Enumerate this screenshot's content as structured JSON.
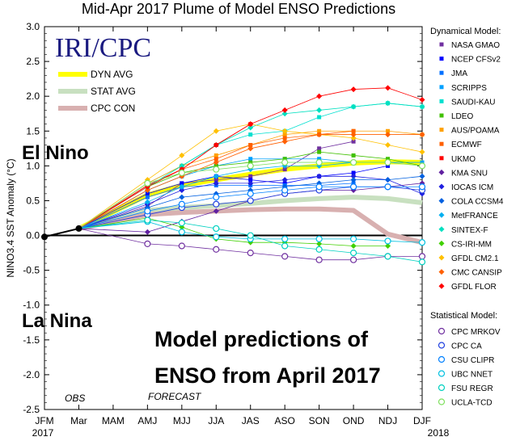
{
  "chart_data": {
    "type": "line",
    "title": "Mid-Apr 2017 Plume of Model ENSO Predictions",
    "ylabel": "NINO3.4 SST Anomaly (°C)",
    "ylim": [
      -2.5,
      3.0
    ],
    "yticks": [
      "3.0",
      "2.5",
      "2.0",
      "1.5",
      "1.0",
      "0.5",
      "0.0",
      "-0.5",
      "-1.0",
      "-1.5",
      "-2.0",
      "-2.5"
    ],
    "categories": [
      "JFM",
      "Mar",
      "MAM",
      "AMJ",
      "MJJ",
      "JJA",
      "JAS",
      "ASO",
      "SON",
      "OND",
      "NDJ",
      "DJF"
    ],
    "year_labels": [
      "2017",
      "2018"
    ],
    "obs_label": "OBS",
    "forecast_label": "FORECAST",
    "observed": [
      -0.02,
      0.1
    ],
    "logo_text": "IRI/CPC",
    "el_nino_label": "El Nino",
    "la_nina_label": "La Nina",
    "caption": [
      "Model predictions of",
      "ENSO from April 2017"
    ],
    "averages": [
      {
        "name": "DYN AVG",
        "color": "#ffff00",
        "values": [
          0.58,
          0.72,
          0.8,
          0.88,
          0.95,
          1.0,
          1.04,
          1.06,
          1.05
        ]
      },
      {
        "name": "STAT AVG",
        "color": "#c8e0c0",
        "values": [
          0.36,
          0.4,
          0.43,
          0.46,
          0.5,
          0.53,
          0.55,
          0.53,
          0.47
        ]
      },
      {
        "name": "CPC CON",
        "color": "#d8b0b0",
        "values": [
          0.3,
          0.33,
          0.35,
          0.37,
          0.38,
          0.38,
          0.36,
          0.02,
          -0.1
        ]
      }
    ],
    "dynamical_header": "Dynamical Model:",
    "dynamical": [
      {
        "name": "NASA GMAO",
        "color": "#7030a0",
        "marker": "square",
        "values": [
          0.42,
          0.75,
          0.8,
          0.85,
          0.95,
          1.25,
          1.35,
          null,
          null
        ]
      },
      {
        "name": "NCEP CFSv2",
        "color": "#0000ff",
        "marker": "square",
        "values": [
          0.6,
          0.75,
          0.85,
          0.8,
          0.75,
          0.85,
          0.9,
          1.0,
          null
        ]
      },
      {
        "name": "JMA",
        "color": "#0070ff",
        "marker": "square",
        "values": [
          0.55,
          0.7,
          0.72,
          0.72,
          0.72,
          0.72,
          0.75,
          null,
          null
        ]
      },
      {
        "name": "SCRIPPS",
        "color": "#00a0ff",
        "marker": "square",
        "values": [
          0.65,
          0.85,
          1.0,
          1.1,
          1.1,
          1.1,
          1.05,
          1.05,
          1.05
        ]
      },
      {
        "name": "SAUDI-KAU",
        "color": "#00e0d0",
        "marker": "square",
        "values": [
          0.75,
          1.0,
          1.3,
          1.45,
          1.5,
          1.7,
          1.85,
          1.9,
          1.85
        ]
      },
      {
        "name": "LDEO",
        "color": "#40c000",
        "marker": "square",
        "values": [
          0.7,
          0.9,
          1.0,
          1.05,
          1.1,
          1.2,
          1.15,
          1.1,
          1.0
        ]
      },
      {
        "name": "AUS/POAMA",
        "color": "#ffa000",
        "marker": "square",
        "values": [
          0.75,
          1.0,
          1.15,
          1.3,
          1.45,
          1.5,
          1.5,
          1.5,
          1.45
        ]
      },
      {
        "name": "ECMWF",
        "color": "#ff6000",
        "marker": "square",
        "values": [
          0.72,
          0.95,
          1.1,
          1.3,
          1.4,
          1.45,
          1.5,
          null,
          null
        ]
      },
      {
        "name": "UKMO",
        "color": "#ff0000",
        "marker": "square",
        "values": [
          0.72,
          0.95,
          1.3,
          1.6,
          null,
          null,
          null,
          null,
          null
        ]
      },
      {
        "name": "KMA SNU",
        "color": "#6020a0",
        "marker": "diamond",
        "values": [
          0.05,
          0.2,
          0.35,
          0.5,
          0.6,
          0.65,
          0.65,
          0.7,
          0.75
        ]
      },
      {
        "name": "IOCAS ICM",
        "color": "#2020e0",
        "marker": "diamond",
        "values": [
          0.45,
          0.65,
          0.75,
          0.75,
          0.8,
          0.85,
          0.85,
          0.8,
          0.6
        ]
      },
      {
        "name": "COLA CCSM4",
        "color": "#0060e0",
        "marker": "diamond",
        "values": [
          0.4,
          0.55,
          0.6,
          0.65,
          0.7,
          0.75,
          0.8,
          0.8,
          0.85
        ]
      },
      {
        "name": "MetFRANCE",
        "color": "#00b0f0",
        "marker": "diamond",
        "values": [
          0.48,
          0.7,
          0.85,
          0.95,
          1.0,
          1.0,
          1.05,
          1.05,
          null
        ]
      },
      {
        "name": "SINTEX-F",
        "color": "#00e0c0",
        "marker": "diamond",
        "values": [
          0.7,
          1.0,
          1.3,
          1.55,
          1.75,
          1.8,
          1.85,
          1.9,
          1.85
        ]
      },
      {
        "name": "CS-IRI-MM",
        "color": "#40d000",
        "marker": "diamond",
        "values": [
          0.25,
          0.12,
          -0.05,
          -0.1,
          -0.1,
          -0.12,
          -0.15,
          -0.15,
          null
        ]
      },
      {
        "name": "GFDL CM2.1",
        "color": "#ffc000",
        "marker": "diamond",
        "values": [
          0.8,
          1.15,
          1.5,
          1.6,
          1.5,
          1.45,
          1.4,
          1.3,
          1.2
        ]
      },
      {
        "name": "CMC CANSIP",
        "color": "#ff6000",
        "marker": "diamond",
        "values": [
          0.65,
          0.85,
          1.05,
          1.25,
          1.35,
          1.45,
          1.45,
          1.45,
          1.45
        ]
      },
      {
        "name": "GFDL FLOR",
        "color": "#ff0000",
        "marker": "diamond",
        "values": [
          0.7,
          0.95,
          1.3,
          1.6,
          1.8,
          2.0,
          2.1,
          2.12,
          1.95
        ]
      }
    ],
    "statistical_header": "Statistical Model:",
    "statistical": [
      {
        "name": "CPC MRKOV",
        "color": "#7030a0",
        "marker": "circle",
        "values": [
          -0.12,
          -0.15,
          -0.2,
          -0.25,
          -0.3,
          -0.35,
          -0.35,
          -0.3,
          -0.3
        ]
      },
      {
        "name": "CPC CA",
        "color": "#2040e0",
        "marker": "circle",
        "values": [
          0.3,
          0.4,
          0.45,
          0.5,
          0.6,
          0.65,
          0.7,
          0.7,
          0.65
        ]
      },
      {
        "name": "CSU CLIPR",
        "color": "#0080ff",
        "marker": "circle",
        "values": [
          0.35,
          0.45,
          0.55,
          0.6,
          0.65,
          0.7,
          0.7,
          0.7,
          0.7
        ]
      },
      {
        "name": "UBC NNET",
        "color": "#00c0e0",
        "marker": "circle",
        "values": [
          0.2,
          0.05,
          -0.02,
          -0.05,
          -0.05,
          -0.05,
          -0.05,
          -0.08,
          -0.1
        ]
      },
      {
        "name": "FSU REGR",
        "color": "#00d0c0",
        "marker": "circle",
        "values": [
          0.22,
          0.18,
          0.1,
          0.0,
          -0.15,
          -0.2,
          -0.25,
          -0.3,
          -0.38
        ]
      },
      {
        "name": "UCLA-TCD",
        "color": "#80e060",
        "marker": "circle",
        "values": [
          0.75,
          0.9,
          0.95,
          1.0,
          1.05,
          1.05,
          1.05,
          1.05,
          1.0
        ]
      }
    ]
  }
}
